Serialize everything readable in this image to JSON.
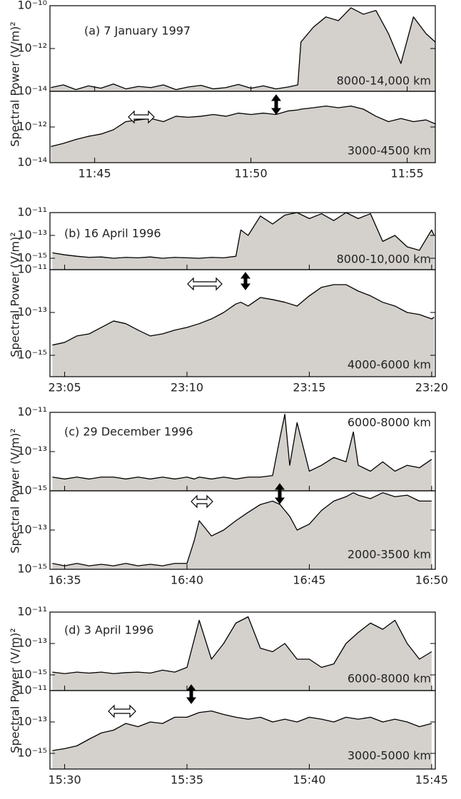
{
  "chart_data": [
    {
      "type": "area",
      "annotation": "(a) 7 January 1997",
      "ylabel": "Spectral Power (V/m)²",
      "log_scale": true,
      "grid": false,
      "fill": "#d4d1cd",
      "line_color": "#000000",
      "xlim": [
        43.57,
        55.9
      ],
      "xticks": [
        {
          "value": 45,
          "label": "11:45"
        },
        {
          "value": 50,
          "label": "11:50"
        },
        {
          "value": 55,
          "label": "11:55"
        }
      ],
      "panels": [
        {
          "label": "8000-14,000 km",
          "ylim": [
            1e-14,
            1e-10
          ],
          "yticks": [
            {
              "value": 1e-14,
              "label": "10⁻¹⁴"
            },
            {
              "value": 1e-12,
              "label": "10⁻¹²"
            },
            {
              "value": 1e-10,
              "label": "10⁻¹⁰"
            }
          ],
          "x": [
            43.6,
            44.0,
            44.4,
            44.8,
            45.2,
            45.6,
            46.0,
            46.4,
            46.8,
            47.2,
            47.6,
            48.0,
            48.4,
            48.8,
            49.2,
            49.6,
            50.0,
            50.4,
            50.8,
            51.2,
            51.5,
            51.6,
            52.0,
            52.4,
            52.8,
            53.2,
            53.6,
            54.0,
            54.4,
            54.8,
            55.2,
            55.6,
            55.9
          ],
          "values": [
            1.5e-14,
            2e-14,
            1.2e-14,
            1.8e-14,
            1.4e-14,
            2.2e-14,
            1.3e-14,
            1.7e-14,
            1.5e-14,
            2e-14,
            1.2e-14,
            1.6e-14,
            1.9e-14,
            1.3e-14,
            1.5e-14,
            2.1e-14,
            1.4e-14,
            1.8e-14,
            1.3e-14,
            1.6e-14,
            2e-14,
            2e-12,
            1e-11,
            3e-11,
            2e-11,
            8e-11,
            4e-11,
            6e-11,
            5e-12,
            2e-13,
            3e-11,
            5e-12,
            2e-12
          ]
        },
        {
          "label": "3000-4500 km",
          "ylim": [
            1e-14,
            1e-10
          ],
          "yticks": [
            {
              "value": 1e-14,
              "label": "10⁻¹⁴"
            },
            {
              "value": 1e-12,
              "label": "10⁻¹²"
            }
          ],
          "x": [
            43.6,
            44.0,
            44.4,
            44.8,
            45.2,
            45.6,
            46.0,
            46.4,
            46.8,
            47.2,
            47.6,
            48.0,
            48.4,
            48.8,
            49.2,
            49.6,
            50.0,
            50.4,
            50.8,
            51.2,
            51.5,
            51.6,
            52.0,
            52.4,
            52.8,
            53.2,
            53.6,
            54.0,
            54.4,
            54.8,
            55.2,
            55.6,
            55.9
          ],
          "values": [
            8e-14,
            1.2e-13,
            2e-13,
            3e-13,
            4e-13,
            7e-13,
            2e-12,
            2.5e-12,
            3e-12,
            2e-12,
            4e-12,
            3.5e-12,
            4e-12,
            5e-12,
            4e-12,
            6e-12,
            5e-12,
            6e-12,
            5e-12,
            8e-12,
            9e-12,
            1e-11,
            1.2e-11,
            1.5e-11,
            1.2e-11,
            1.5e-11,
            1e-11,
            4e-12,
            2e-12,
            3e-12,
            2e-12,
            2.5e-12,
            1.5e-12
          ]
        }
      ]
    },
    {
      "type": "area",
      "annotation": "(b) 16 April 1996",
      "ylabel": "Spectral Power (V/m)²",
      "log_scale": true,
      "grid": false,
      "fill": "#d4d1cd",
      "line_color": "#000000",
      "xlim": [
        4.4,
        20.15
      ],
      "xticks": [
        {
          "value": 5,
          "label": "23:05"
        },
        {
          "value": 10,
          "label": "23:10"
        },
        {
          "value": 15,
          "label": "23:15"
        },
        {
          "value": 20,
          "label": "23:20"
        }
      ],
      "panels": [
        {
          "label": "8000-10,000 km",
          "ylim": [
            1e-16,
            1e-11
          ],
          "yticks": [
            {
              "value": 1e-15,
              "label": "10⁻¹⁵"
            },
            {
              "value": 1e-13,
              "label": "10⁻¹³"
            },
            {
              "value": 1e-11,
              "label": "10⁻¹¹"
            }
          ],
          "x": [
            4.5,
            5,
            5.5,
            6,
            6.5,
            7,
            7.5,
            8,
            8.5,
            9,
            9.5,
            10,
            10.5,
            11,
            11.5,
            12,
            12.2,
            12.5,
            13,
            13.5,
            14,
            14.5,
            15,
            15.5,
            16,
            16.5,
            17,
            17.5,
            18,
            18.5,
            19,
            19.5,
            20,
            20.1
          ],
          "values": [
            3e-15,
            2e-15,
            1.5e-15,
            1.2e-15,
            1.3e-15,
            1e-15,
            1.2e-15,
            1.1e-15,
            1.3e-15,
            1e-15,
            1.2e-15,
            1.1e-15,
            1e-15,
            1.2e-15,
            1.1e-15,
            1.5e-15,
            3e-13,
            1e-13,
            5e-12,
            1e-12,
            6e-12,
            1e-11,
            3e-12,
            8e-12,
            2e-12,
            1e-11,
            3e-12,
            8e-12,
            3e-14,
            1e-13,
            1e-14,
            5e-15,
            3e-13,
            1e-13
          ]
        },
        {
          "label": "4000-6000 km",
          "ylim": [
            1e-16,
            1e-11
          ],
          "yticks": [
            {
              "value": 1e-15,
              "label": "10⁻¹⁵"
            },
            {
              "value": 1e-13,
              "label": "10⁻¹³"
            },
            {
              "value": 1e-11,
              "label": "10⁻¹¹"
            }
          ],
          "x": [
            4.5,
            5,
            5.5,
            6,
            6.5,
            7,
            7.5,
            8,
            8.5,
            9,
            9.5,
            10,
            10.5,
            11,
            11.5,
            12,
            12.2,
            12.5,
            13,
            13.5,
            14,
            14.5,
            15,
            15.5,
            16,
            16.5,
            17,
            17.5,
            18,
            18.5,
            19,
            19.5,
            20,
            20.1
          ],
          "values": [
            3e-15,
            4e-15,
            8e-15,
            1e-14,
            2e-14,
            4e-14,
            3e-14,
            1.5e-14,
            8e-15,
            1e-14,
            1.5e-14,
            2e-14,
            3e-14,
            5e-14,
            1e-13,
            2.5e-13,
            3e-13,
            2e-13,
            5e-13,
            4e-13,
            3e-13,
            2e-13,
            6e-13,
            1.5e-12,
            2e-12,
            2e-12,
            1e-12,
            6e-13,
            3e-13,
            2e-13,
            1e-13,
            8e-14,
            5e-14,
            6e-14
          ]
        }
      ]
    },
    {
      "type": "area",
      "annotation": "(c) 29 December 1996",
      "ylabel": "Spectral Power (V/m)²",
      "log_scale": true,
      "grid": false,
      "fill": "#d4d1cd",
      "line_color": "#000000",
      "xlim": [
        34.4,
        50.15
      ],
      "xticks": [
        {
          "value": 35,
          "label": "16:35"
        },
        {
          "value": 40,
          "label": "16:40"
        },
        {
          "value": 45,
          "label": "16:45"
        },
        {
          "value": 50,
          "label": "16:50"
        }
      ],
      "panels": [
        {
          "label": "6000-8000 km",
          "ylim": [
            1e-15,
            1e-11
          ],
          "yticks": [
            {
              "value": 1e-15,
              "label": "10⁻¹⁵"
            },
            {
              "value": 1e-13,
              "label": "10⁻¹³"
            },
            {
              "value": 1e-11,
              "label": "10⁻¹¹"
            }
          ],
          "x": [
            34.5,
            35,
            35.5,
            36,
            36.5,
            37,
            37.5,
            38,
            38.5,
            39,
            39.5,
            40,
            40.3,
            40.5,
            41,
            41.5,
            42,
            42.5,
            43,
            43.5,
            43.8,
            44,
            44.2,
            44.5,
            45,
            45.5,
            46,
            46.5,
            46.8,
            47,
            47.5,
            48,
            48.5,
            49,
            49.5,
            50
          ],
          "values": [
            5e-15,
            4e-15,
            5e-15,
            4e-15,
            5e-15,
            5e-15,
            4e-15,
            5e-15,
            4e-15,
            5e-15,
            4e-15,
            5e-15,
            4e-15,
            5e-15,
            4e-15,
            5e-15,
            4e-15,
            5e-15,
            5e-15,
            6e-15,
            5e-13,
            8e-12,
            2e-14,
            3e-12,
            1e-14,
            2e-14,
            5e-14,
            3e-14,
            1e-12,
            2e-14,
            1e-14,
            3e-14,
            1e-14,
            2e-14,
            1.5e-14,
            4e-14
          ]
        },
        {
          "label": "2000-3500 km",
          "ylim": [
            1e-15,
            1e-11
          ],
          "yticks": [
            {
              "value": 1e-15,
              "label": "10⁻¹⁵"
            },
            {
              "value": 1e-13,
              "label": "10⁻¹³"
            }
          ],
          "x": [
            34.5,
            35,
            35.5,
            36,
            36.5,
            37,
            37.5,
            38,
            38.5,
            39,
            39.5,
            40,
            40.3,
            40.5,
            41,
            41.5,
            42,
            42.5,
            43,
            43.5,
            43.8,
            44,
            44.2,
            44.5,
            45,
            45.5,
            46,
            46.5,
            46.8,
            47,
            47.5,
            48,
            48.5,
            49,
            49.5,
            50
          ],
          "values": [
            2e-15,
            1.5e-15,
            2e-15,
            1.5e-15,
            1.8e-15,
            1.5e-15,
            2e-15,
            1.5e-15,
            1.8e-15,
            1.5e-15,
            2e-15,
            2e-15,
            3e-14,
            3e-13,
            5e-14,
            1e-13,
            3e-13,
            8e-13,
            2e-12,
            3e-12,
            2e-12,
            1e-12,
            5e-13,
            1e-13,
            2e-13,
            1e-12,
            3e-12,
            5e-12,
            8e-12,
            6e-12,
            4e-12,
            8e-12,
            5e-12,
            6e-12,
            3e-12,
            3e-12
          ]
        }
      ]
    },
    {
      "type": "area",
      "annotation": "(d) 3 April 1996",
      "ylabel": "Spectral Power (V/m)²",
      "log_scale": true,
      "grid": false,
      "fill": "#d4d1cd",
      "line_color": "#000000",
      "xlim": [
        29.4,
        45.15
      ],
      "xticks": [
        {
          "value": 30,
          "label": "15:30"
        },
        {
          "value": 35,
          "label": "15:35"
        },
        {
          "value": 40,
          "label": "15:40"
        },
        {
          "value": 45,
          "label": "15:45"
        }
      ],
      "panels": [
        {
          "label": "6000-8000 km",
          "ylim": [
            1e-16,
            1e-11
          ],
          "yticks": [
            {
              "value": 1e-15,
              "label": "10⁻¹⁵"
            },
            {
              "value": 1e-13,
              "label": "10⁻¹³"
            },
            {
              "value": 1e-11,
              "label": "10⁻¹¹"
            }
          ],
          "x": [
            29.5,
            30,
            30.5,
            31,
            31.5,
            32,
            32.5,
            33,
            33.5,
            34,
            34.5,
            35,
            35.5,
            36,
            36.5,
            37,
            37.5,
            38,
            38.5,
            39,
            39.5,
            40,
            40.5,
            41,
            41.5,
            42,
            42.5,
            43,
            43.5,
            44,
            44.5,
            45
          ],
          "values": [
            1.5e-15,
            1.2e-15,
            1.5e-15,
            1.3e-15,
            1.5e-15,
            1.2e-15,
            1.4e-15,
            1.5e-15,
            1.3e-15,
            2e-15,
            1.5e-15,
            3e-15,
            3e-12,
            1e-14,
            1e-13,
            2e-12,
            5e-12,
            5e-14,
            3e-14,
            1e-13,
            1e-14,
            1e-14,
            3e-15,
            5e-15,
            1e-13,
            5e-13,
            2e-12,
            8e-13,
            3e-12,
            1e-13,
            1e-14,
            3e-14
          ]
        },
        {
          "label": "3000-5000 km",
          "ylim": [
            1e-16,
            1e-11
          ],
          "yticks": [
            {
              "value": 1e-15,
              "label": "10⁻¹⁵"
            },
            {
              "value": 1e-13,
              "label": "10⁻¹³"
            },
            {
              "value": 1e-11,
              "label": "10⁻¹¹"
            }
          ],
          "x": [
            29.5,
            30,
            30.5,
            31,
            31.5,
            32,
            32.5,
            33,
            33.5,
            34,
            34.5,
            35,
            35.5,
            36,
            36.5,
            37,
            37.5,
            38,
            38.5,
            39,
            39.5,
            40,
            40.5,
            41,
            41.5,
            42,
            42.5,
            43,
            43.5,
            44,
            44.5,
            45
          ],
          "values": [
            1.5e-15,
            2e-15,
            3e-15,
            8e-15,
            2e-14,
            3e-14,
            8e-14,
            5e-14,
            1e-13,
            8e-14,
            2e-13,
            2e-13,
            4e-13,
            5e-13,
            3e-13,
            2e-13,
            1.5e-13,
            2e-13,
            1e-13,
            1.5e-13,
            1e-13,
            2e-13,
            1.5e-13,
            1e-13,
            2e-13,
            1.5e-13,
            2e-13,
            1e-13,
            1.5e-13,
            1e-13,
            5e-14,
            8e-14
          ]
        }
      ]
    }
  ]
}
